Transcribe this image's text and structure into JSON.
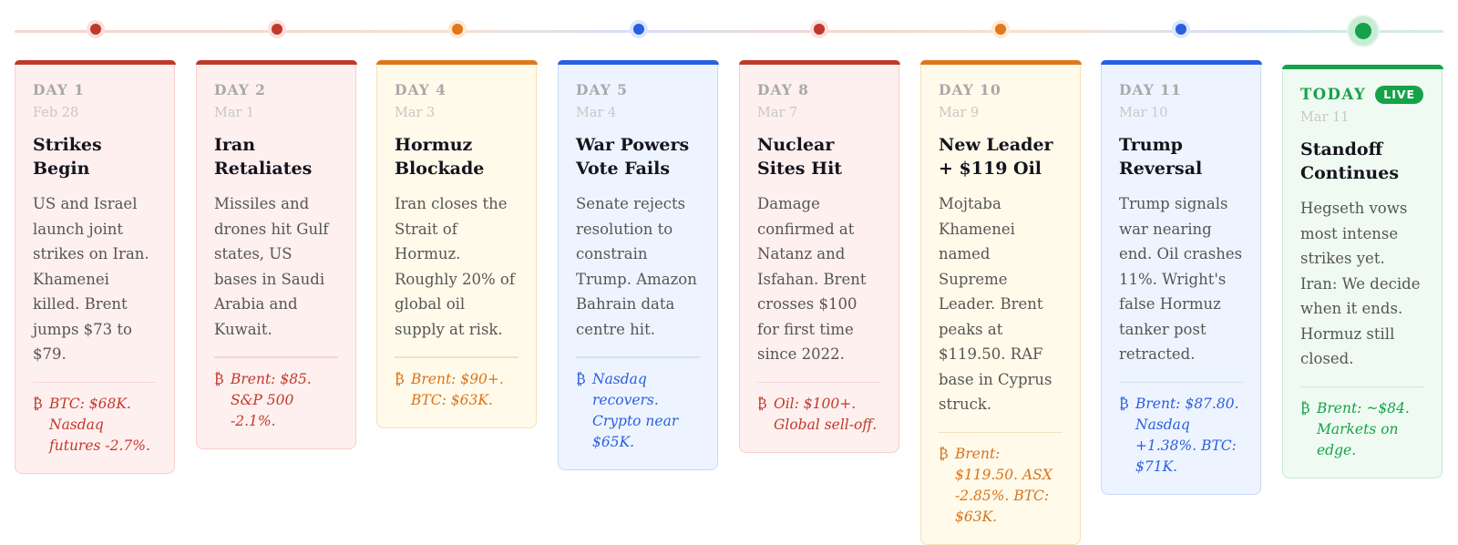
{
  "colors": {
    "red": "#c0392b",
    "orange": "#e0771a",
    "blue": "#2860e0",
    "green": "#17a24a"
  },
  "events": [
    {
      "day": "DAY 1",
      "date": "Feb 28",
      "title": "Strikes Begin",
      "description": "US and Israel launch joint strikes on Iran. Khamenei killed. Brent jumps $73 to $79.",
      "market": "BTC: $68K. Nasdaq futures -2.7%.",
      "market_icon": "₿",
      "theme": "red"
    },
    {
      "day": "DAY 2",
      "date": "Mar 1",
      "title": "Iran Retaliates",
      "description": "Missiles and drones hit Gulf states, US bases in Saudi Arabia and Kuwait.",
      "market": "Brent: $85. S&P 500 -2.1%.",
      "market_icon": "₿",
      "theme": "red"
    },
    {
      "day": "DAY 4",
      "date": "Mar 3",
      "title": "Hormuz Blockade",
      "description": "Iran closes the Strait of Hormuz. Roughly 20% of global oil supply at risk.",
      "market": "Brent: $90+. BTC: $63K.",
      "market_icon": "₿",
      "theme": "orange"
    },
    {
      "day": "DAY 5",
      "date": "Mar 4",
      "title": "War Powers Vote Fails",
      "description": "Senate rejects resolution to constrain Trump. Amazon Bahrain data centre hit.",
      "market": "Nasdaq recovers. Crypto near $65K.",
      "market_icon": "₿",
      "theme": "blue"
    },
    {
      "day": "DAY 8",
      "date": "Mar 7",
      "title": "Nuclear Sites Hit",
      "description": "Damage confirmed at Natanz and Isfahan. Brent crosses $100 for first time since 2022.",
      "market": "Oil: $100+. Global sell-off.",
      "market_icon": "₿",
      "theme": "red"
    },
    {
      "day": "DAY 10",
      "date": "Mar 9",
      "title": "New Leader + $119 Oil",
      "description": "Mojtaba Khamenei named Supreme Leader. Brent peaks at $119.50. RAF base in Cyprus struck.",
      "market": "Brent: $119.50. ASX -2.85%. BTC: $63K.",
      "market_icon": "₿",
      "theme": "orange"
    },
    {
      "day": "DAY 11",
      "date": "Mar 10",
      "title": "Trump Reversal",
      "description": "Trump signals war nearing end. Oil crashes 11%. Wright's false Hormuz tanker post retracted.",
      "market": "Brent: $87.80. Nasdaq +1.38%. BTC: $71K.",
      "market_icon": "₿",
      "theme": "blue"
    },
    {
      "day": "TODAY",
      "badge": "LIVE",
      "date": "Mar 11",
      "title": "Standoff Continues",
      "description": "Hegseth vows most intense strikes yet. Iran: We decide when it ends. Hormuz still closed.",
      "market": "Brent: ~$84. Markets on edge.",
      "market_icon": "₿",
      "theme": "green"
    }
  ]
}
